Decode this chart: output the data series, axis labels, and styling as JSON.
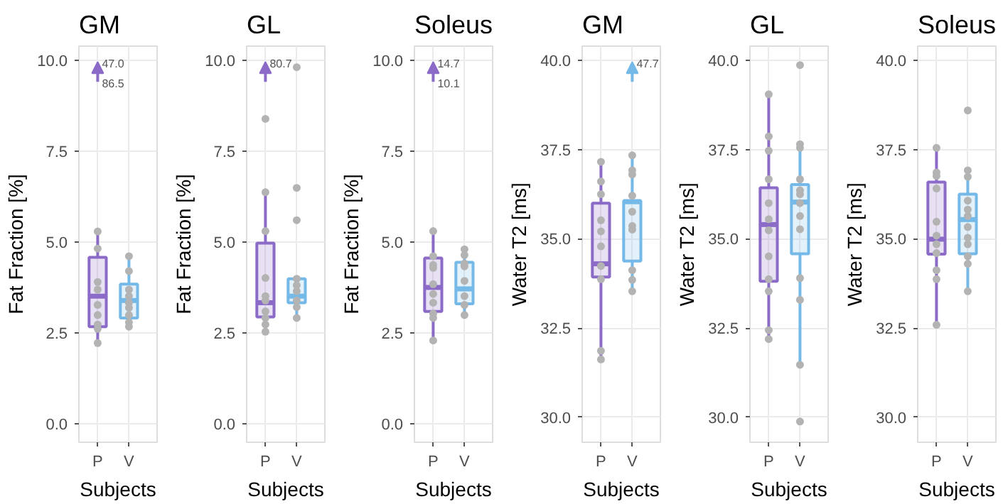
{
  "chart_data": [
    {
      "type": "box",
      "title": "GM",
      "xlabel": "Subjects",
      "ylabel": "Fat Fraction [%]",
      "categories": [
        "P",
        "V"
      ],
      "colors": [
        "#8c6bc8",
        "#74b9e7"
      ],
      "grid": true,
      "ylim": [
        -0.5,
        10.4
      ],
      "yticks": [
        {
          "value": 0,
          "label": "0.0"
        },
        {
          "value": 2.5,
          "label": "2.5"
        },
        {
          "value": 5,
          "label": "5.0"
        },
        {
          "value": 7.5,
          "label": "7.5"
        },
        {
          "value": 10,
          "label": "10.0"
        }
      ],
      "boxes": [
        {
          "low": 2.2,
          "q1": 2.68,
          "median": 3.52,
          "q3": 4.59,
          "high": 5.33
        },
        {
          "low": 2.68,
          "q1": 2.92,
          "median": 3.4,
          "q3": 3.85,
          "high": 4.62
        }
      ],
      "series": [
        {
          "type": "scatter",
          "color": "#b3b3b3",
          "x": [
            "P",
            "P",
            "P",
            "P",
            "P",
            "P",
            "P",
            "P",
            "P",
            "V",
            "V",
            "V",
            "V",
            "V",
            "V",
            "V",
            "V",
            "V"
          ],
          "values": [
            5.3,
            4.83,
            3.91,
            3.7,
            3.28,
            3.0,
            2.74,
            2.62,
            2.23,
            4.62,
            4.21,
            3.7,
            3.52,
            3.34,
            3.2,
            3.0,
            2.8,
            2.68
          ]
        }
      ],
      "annotations": [
        "47.0",
        "86.5"
      ]
    },
    {
      "type": "box",
      "title": "GL",
      "xlabel": "Subjects",
      "ylabel": "Fat Fraction [%]",
      "categories": [
        "P",
        "V"
      ],
      "colors": [
        "#8c6bc8",
        "#74b9e7"
      ],
      "grid": true,
      "ylim": [
        -0.5,
        10.4
      ],
      "yticks": [
        {
          "value": 0,
          "label": "0.0"
        },
        {
          "value": 2.5,
          "label": "2.5"
        },
        {
          "value": 5,
          "label": "5.0"
        },
        {
          "value": 7.5,
          "label": "7.5"
        },
        {
          "value": 10,
          "label": "10.0"
        }
      ],
      "boxes": [
        {
          "low": 2.54,
          "q1": 2.95,
          "median": 3.34,
          "q3": 4.98,
          "high": 6.38
        },
        {
          "low": 2.92,
          "q1": 3.34,
          "median": 3.52,
          "q3": 4.0,
          "high": 4.0
        }
      ],
      "series": [
        {
          "type": "scatter",
          "color": "#b3b3b3",
          "x": [
            "P",
            "P",
            "P",
            "P",
            "P",
            "P",
            "P",
            "P",
            "P",
            "P",
            "V",
            "V",
            "V",
            "V",
            "V",
            "V",
            "V",
            "V",
            "V"
          ],
          "values": [
            8.4,
            6.38,
            5.31,
            4.02,
            3.52,
            3.4,
            3.1,
            2.92,
            2.74,
            2.54,
            9.82,
            6.5,
            5.61,
            4.0,
            3.82,
            3.66,
            3.4,
            3.22,
            2.92
          ]
        }
      ],
      "annotations": [
        "80.7"
      ]
    },
    {
      "type": "box",
      "title": "Soleus",
      "xlabel": "Subjects",
      "ylabel": "Fat Fraction [%]",
      "categories": [
        "P",
        "V"
      ],
      "colors": [
        "#8c6bc8",
        "#74b9e7"
      ],
      "grid": true,
      "ylim": [
        -0.5,
        10.4
      ],
      "yticks": [
        {
          "value": 0,
          "label": "0.0"
        },
        {
          "value": 2.5,
          "label": "2.5"
        },
        {
          "value": 5,
          "label": "5.0"
        },
        {
          "value": 7.5,
          "label": "7.5"
        },
        {
          "value": 10,
          "label": "10.0"
        }
      ],
      "boxes": [
        {
          "low": 2.3,
          "q1": 3.1,
          "median": 3.76,
          "q3": 4.57,
          "high": 5.31
        },
        {
          "low": 3.0,
          "q1": 3.31,
          "median": 3.72,
          "q3": 4.45,
          "high": 4.81
        }
      ],
      "series": [
        {
          "type": "scatter",
          "color": "#b3b3b3",
          "x": [
            "P",
            "P",
            "P",
            "P",
            "P",
            "P",
            "P",
            "P",
            "P",
            "P",
            "V",
            "V",
            "V",
            "V",
            "V",
            "V",
            "V",
            "V"
          ],
          "values": [
            5.31,
            4.62,
            4.38,
            4.3,
            3.85,
            3.58,
            3.34,
            3.04,
            2.92,
            2.3,
            4.81,
            4.65,
            4.42,
            4.34,
            3.94,
            3.52,
            3.28,
            3.0
          ]
        }
      ],
      "annotations": [
        "14.7",
        "10.1"
      ]
    },
    {
      "type": "box",
      "title": "GM",
      "xlabel": "Subjects",
      "ylabel": "Water T2 [ms]",
      "categories": [
        "P",
        "V"
      ],
      "colors": [
        "#8c6bc8",
        "#74b9e7"
      ],
      "grid": true,
      "ylim": [
        29.3,
        40.4
      ],
      "yticks": [
        {
          "value": 30,
          "label": "30.0"
        },
        {
          "value": 32.5,
          "label": "32.5"
        },
        {
          "value": 35,
          "label": "35.0"
        },
        {
          "value": 37.5,
          "label": "37.5"
        },
        {
          "value": 40,
          "label": "40.0"
        }
      ],
      "boxes": [
        {
          "low": 31.62,
          "q1": 33.93,
          "median": 34.3,
          "q3": 36.0,
          "high": 37.16
        },
        {
          "low": 33.53,
          "q1": 34.38,
          "median": 36.04,
          "q3": 36.07,
          "high": 37.34
        }
      ],
      "series": [
        {
          "type": "scatter",
          "color": "#b3b3b3",
          "x": [
            "P",
            "P",
            "P",
            "P",
            "P",
            "P",
            "P",
            "P",
            "P",
            "P",
            "V",
            "V",
            "V",
            "V",
            "V",
            "V",
            "V",
            "V",
            "V",
            "V"
          ],
          "values": [
            37.16,
            36.61,
            36.25,
            35.52,
            35.21,
            34.79,
            34.24,
            33.87,
            31.86,
            31.62,
            37.34,
            36.92,
            36.8,
            36.21,
            35.76,
            35.36,
            35.26,
            34.12,
            33.85,
            33.53
          ]
        }
      ],
      "annotations": [
        "47.7"
      ]
    },
    {
      "type": "box",
      "title": "GL",
      "xlabel": "Subjects",
      "ylabel": "Water T2 [ms]",
      "categories": [
        "P",
        "V"
      ],
      "colors": [
        "#8c6bc8",
        "#74b9e7"
      ],
      "grid": true,
      "ylim": [
        29.3,
        40.4
      ],
      "yticks": [
        {
          "value": 30,
          "label": "30.0"
        },
        {
          "value": 32.5,
          "label": "32.5"
        },
        {
          "value": 35,
          "label": "35.0"
        },
        {
          "value": 37.5,
          "label": "37.5"
        },
        {
          "value": 40,
          "label": "40.0"
        }
      ],
      "boxes": [
        {
          "low": 32.19,
          "q1": 33.81,
          "median": 35.4,
          "q3": 36.43,
          "high": 39.05
        },
        {
          "low": 31.47,
          "q1": 34.58,
          "median": 36.03,
          "q3": 36.52,
          "high": 37.65
        }
      ],
      "series": [
        {
          "type": "scatter",
          "color": "#b3b3b3",
          "x": [
            "P",
            "P",
            "P",
            "P",
            "P",
            "P",
            "P",
            "P",
            "P",
            "P",
            "P",
            "P",
            "V",
            "V",
            "V",
            "V",
            "V",
            "V",
            "V",
            "V",
            "V",
            "V",
            "V",
            "V",
            "V"
          ],
          "values": [
            39.05,
            37.87,
            37.47,
            36.67,
            36.0,
            35.55,
            35.24,
            34.51,
            33.87,
            33.53,
            32.44,
            32.19,
            39.87,
            37.65,
            37.55,
            36.67,
            36.36,
            36.25,
            36.0,
            35.64,
            35.27,
            33.9,
            33.29,
            31.47,
            29.88
          ]
        }
      ]
    },
    {
      "type": "box",
      "title": "Soleus",
      "xlabel": "Subjects",
      "ylabel": "Water T2 [ms]",
      "categories": [
        "P",
        "V"
      ],
      "colors": [
        "#8c6bc8",
        "#74b9e7"
      ],
      "grid": true,
      "ylim": [
        29.3,
        40.4
      ],
      "yticks": [
        {
          "value": 30,
          "label": "30.0"
        },
        {
          "value": 32.5,
          "label": "32.5"
        },
        {
          "value": 35,
          "label": "35.0"
        },
        {
          "value": 37.5,
          "label": "37.5"
        },
        {
          "value": 40,
          "label": "40.0"
        }
      ],
      "boxes": [
        {
          "low": 32.59,
          "q1": 34.57,
          "median": 34.99,
          "q3": 36.59,
          "high": 37.55
        },
        {
          "low": 33.53,
          "q1": 34.58,
          "median": 35.54,
          "q3": 36.25,
          "high": 36.92
        }
      ],
      "series": [
        {
          "type": "scatter",
          "color": "#b3b3b3",
          "x": [
            "P",
            "P",
            "P",
            "P",
            "P",
            "P",
            "P",
            "P",
            "P",
            "P",
            "P",
            "V",
            "V",
            "V",
            "V",
            "V",
            "V",
            "V",
            "V",
            "V",
            "V",
            "V",
            "V"
          ],
          "values": [
            37.55,
            36.86,
            36.76,
            36.41,
            35.48,
            35.09,
            34.85,
            34.6,
            34.12,
            33.87,
            32.59,
            38.6,
            36.92,
            36.74,
            36.07,
            35.82,
            35.64,
            35.33,
            35.03,
            34.85,
            34.51,
            34.3,
            33.53
          ]
        }
      ]
    }
  ]
}
